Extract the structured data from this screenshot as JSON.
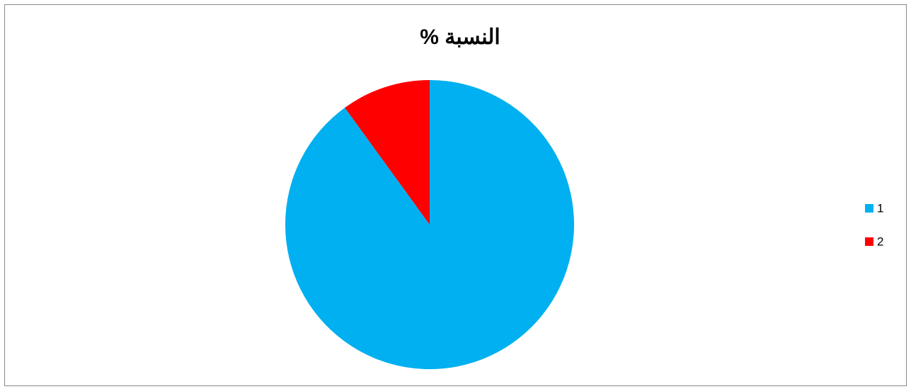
{
  "chart_data": {
    "type": "pie",
    "title": "النسبة %",
    "categories": [
      "1",
      "2"
    ],
    "values": [
      90,
      10
    ],
    "colors": [
      "#00b0f0",
      "#ff0000"
    ],
    "legend": "right"
  }
}
